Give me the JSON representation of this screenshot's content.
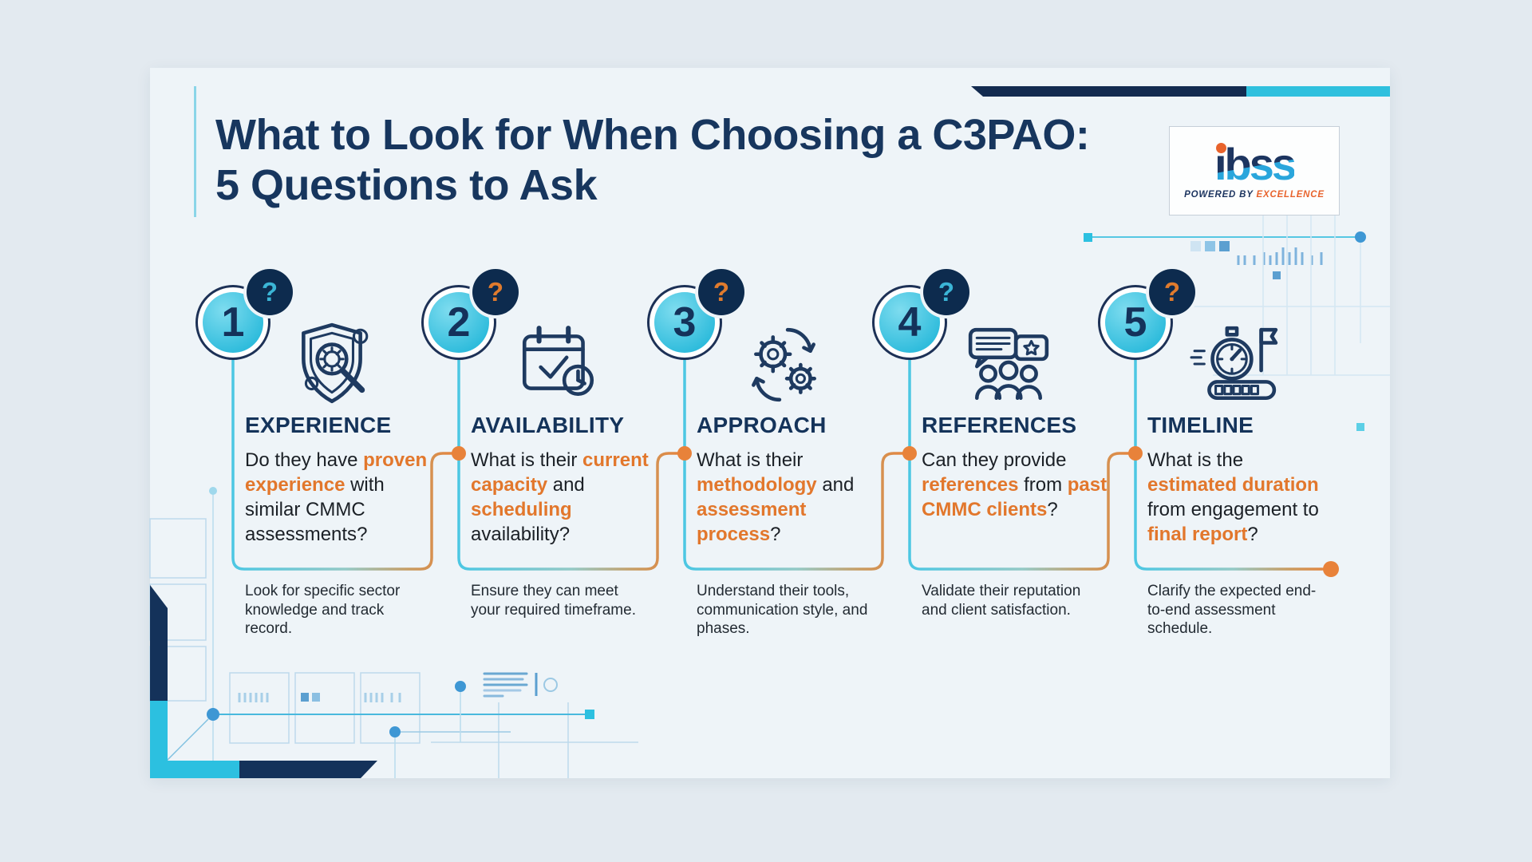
{
  "header": {
    "title_line1": "What to Look for When Choosing a C3PAO:",
    "title_line2": "5 Questions to Ask"
  },
  "logo": {
    "brand": "ibss",
    "tagline_prefix": "POWERED BY",
    "tagline_accent": "EXCELLENCE"
  },
  "items": [
    {
      "number": "1",
      "badge": "?",
      "badge_accent": "#3bb5d6",
      "icon": "shield-gear-magnifier-icon",
      "title": "EXPERIENCE",
      "question": [
        {
          "text": "Do they have ",
          "accent": false
        },
        {
          "text": "proven experience",
          "accent": true
        },
        {
          "text": " with similar CMMC assessments",
          "accent": false
        },
        {
          "text": "?",
          "accent": false
        }
      ],
      "note": "Look for specific sector knowledge and track record."
    },
    {
      "number": "2",
      "badge": "?",
      "badge_accent": "#e07b2d",
      "icon": "calendar-check-clock-icon",
      "title": "AVAILABILITY",
      "question": [
        {
          "text": "What is their ",
          "accent": false
        },
        {
          "text": "current capacity",
          "accent": true
        },
        {
          "text": " and ",
          "accent": false
        },
        {
          "text": "scheduling",
          "accent": true
        },
        {
          "text": " availability?",
          "accent": false
        }
      ],
      "note": "Ensure they can meet your required timeframe."
    },
    {
      "number": "3",
      "badge": "?",
      "badge_accent": "#e07b2d",
      "icon": "gears-process-icon",
      "title": "APPROACH",
      "question": [
        {
          "text": "What is their ",
          "accent": false
        },
        {
          "text": "methodology",
          "accent": true
        },
        {
          "text": " and ",
          "accent": false
        },
        {
          "text": "assessment process",
          "accent": true
        },
        {
          "text": "?",
          "accent": false
        }
      ],
      "note": "Understand their tools, communication style, and phases."
    },
    {
      "number": "4",
      "badge": "?",
      "badge_accent": "#3bb5d6",
      "icon": "testimonials-people-icon",
      "title": "REFERENCES",
      "question": [
        {
          "text": "Can they provide ",
          "accent": false
        },
        {
          "text": "references",
          "accent": true
        },
        {
          "text": " from ",
          "accent": false
        },
        {
          "text": "past CMMC clients",
          "accent": true
        },
        {
          "text": "?",
          "accent": false
        }
      ],
      "note": "Validate their reputation and client satisfaction."
    },
    {
      "number": "5",
      "badge": "?",
      "badge_accent": "#e07b2d",
      "icon": "stopwatch-flag-icon",
      "title": "TIMELINE",
      "question": [
        {
          "text": "What is the ",
          "accent": false
        },
        {
          "text": "estimated duration",
          "accent": true
        },
        {
          "text": " from engagement to ",
          "accent": false
        },
        {
          "text": "final report",
          "accent": true
        },
        {
          "text": "?",
          "accent": false
        }
      ],
      "note": "Clarify the expected end-to-end assessment schedule."
    }
  ],
  "colors": {
    "navy": "#16355c",
    "cyan": "#3cc4e0",
    "orange": "#e07b2d",
    "card_bg": "#eef4f8",
    "outer_bg": "#e3eaf0"
  }
}
